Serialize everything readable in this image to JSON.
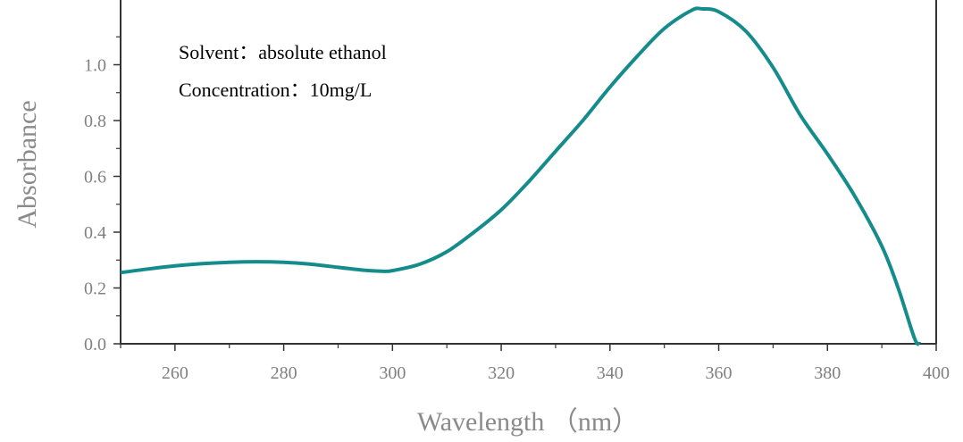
{
  "chart_data": {
    "type": "line",
    "title": "",
    "xlabel": "Wavelength （nm）",
    "ylabel": "Absorbance",
    "xlim": [
      250,
      400
    ],
    "ylim": [
      0.0,
      1.2
    ],
    "x_ticks": [
      260,
      280,
      300,
      320,
      340,
      360,
      380,
      400
    ],
    "y_ticks": [
      0.0,
      0.2,
      0.4,
      0.6,
      0.8,
      1.0
    ],
    "grid": false,
    "legend": "none",
    "annotations": [
      "Solvent：absolute ethanol",
      "Concentration：10mg/L"
    ],
    "series": [
      {
        "color": "#158c8c",
        "points": [
          [
            250,
            0.255
          ],
          [
            255,
            0.268
          ],
          [
            260,
            0.279
          ],
          [
            265,
            0.287
          ],
          [
            270,
            0.292
          ],
          [
            275,
            0.294
          ],
          [
            280,
            0.292
          ],
          [
            285,
            0.285
          ],
          [
            290,
            0.274
          ],
          [
            295,
            0.263
          ],
          [
            298,
            0.26
          ],
          [
            300,
            0.262
          ],
          [
            305,
            0.285
          ],
          [
            310,
            0.33
          ],
          [
            315,
            0.4
          ],
          [
            320,
            0.48
          ],
          [
            325,
            0.58
          ],
          [
            330,
            0.69
          ],
          [
            335,
            0.8
          ],
          [
            340,
            0.92
          ],
          [
            345,
            1.03
          ],
          [
            350,
            1.13
          ],
          [
            355,
            1.195
          ],
          [
            357,
            1.2
          ],
          [
            360,
            1.19
          ],
          [
            365,
            1.12
          ],
          [
            370,
            0.99
          ],
          [
            375,
            0.82
          ],
          [
            380,
            0.68
          ],
          [
            385,
            0.53
          ],
          [
            390,
            0.35
          ],
          [
            393,
            0.2
          ],
          [
            396,
            0.02
          ],
          [
            397,
            0.0
          ]
        ]
      }
    ]
  }
}
